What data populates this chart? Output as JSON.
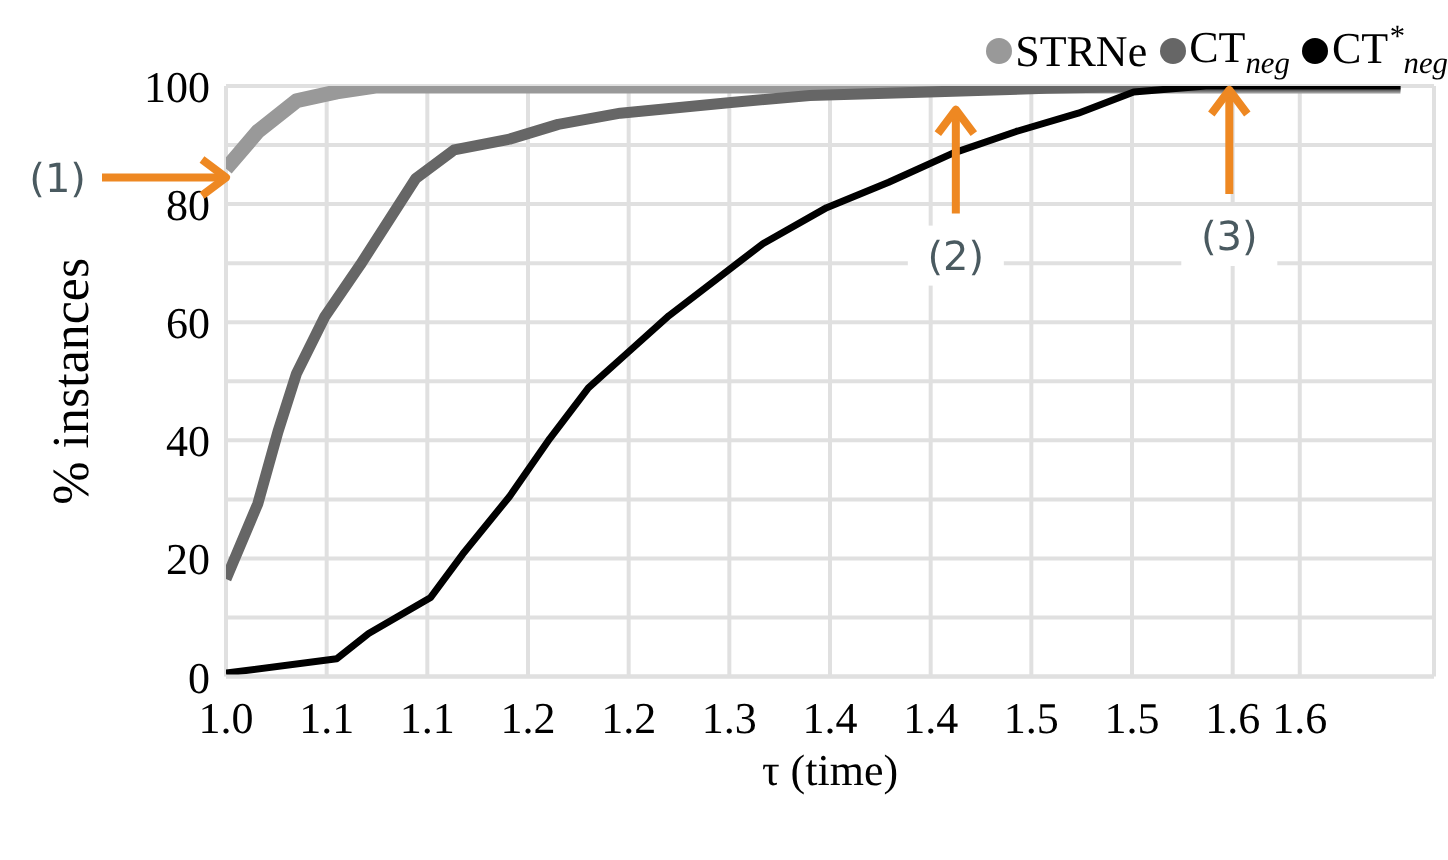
{
  "chart_data": {
    "type": "line",
    "xlabel": "τ (time)",
    "ylabel": "% instances",
    "xlim": [
      1.0,
      1.72
    ],
    "ylim": [
      0,
      100
    ],
    "xticks": [
      {
        "value": 1.0,
        "label": "1.0"
      },
      {
        "value": 1.06,
        "label": "1.1"
      },
      {
        "value": 1.12,
        "label": "1.1"
      },
      {
        "value": 1.18,
        "label": "1.2"
      },
      {
        "value": 1.24,
        "label": "1.2"
      },
      {
        "value": 1.3,
        "label": "1.3"
      },
      {
        "value": 1.36,
        "label": "1.4"
      },
      {
        "value": 1.42,
        "label": "1.4"
      },
      {
        "value": 1.48,
        "label": "1.5"
      },
      {
        "value": 1.54,
        "label": "1.5"
      },
      {
        "value": 1.6,
        "label": "1.6"
      },
      {
        "value": 1.64,
        "label": "1.6"
      }
    ],
    "yticks": [
      0,
      {
        "value": 10,
        "label": null
      },
      20,
      {
        "value": 30,
        "label": null
      },
      40,
      {
        "value": 50,
        "label": null
      },
      60,
      {
        "value": 70,
        "label": null
      },
      80,
      {
        "value": 90,
        "label": null
      },
      100
    ],
    "grid": true,
    "legend": "top right",
    "marker": "none",
    "line_style": "solid",
    "series": [
      {
        "name": "STRNe",
        "color": "#999999",
        "x": [
          1.0,
          1.019,
          1.042,
          1.066,
          1.089,
          1.2,
          1.4,
          1.6,
          1.7
        ],
        "values": [
          86,
          92.3,
          97.5,
          99,
          100,
          100,
          100,
          100,
          100
        ]
      },
      {
        "name": "CT$_{neg}$",
        "color": "#666666",
        "x": [
          1.0,
          1.019,
          1.031,
          1.042,
          1.059,
          1.08,
          1.113,
          1.136,
          1.169,
          1.198,
          1.235,
          1.301,
          1.348,
          1.419,
          1.489,
          1.56,
          1.7
        ],
        "values": [
          16.5,
          29.3,
          41.5,
          51.3,
          61,
          69.7,
          84.3,
          89.2,
          91,
          93.5,
          95.4,
          97.2,
          98.4,
          99,
          99.6,
          100,
          100
        ]
      },
      {
        "name": "CT$^{*}$$_{neg}$",
        "color": "#000000",
        "x": [
          1.0,
          1.066,
          1.085,
          1.122,
          1.141,
          1.169,
          1.193,
          1.216,
          1.24,
          1.264,
          1.292,
          1.32,
          1.358,
          1.395,
          1.433,
          1.471,
          1.508,
          1.541,
          1.584,
          1.7
        ],
        "values": [
          0.6,
          3,
          7.3,
          13.4,
          20.7,
          30.5,
          40.3,
          48.9,
          55,
          61.1,
          67.2,
          73.3,
          79.4,
          83.7,
          88.6,
          92.3,
          95.4,
          99,
          100,
          100
        ]
      }
    ],
    "annotations": [
      {
        "text": "(1)",
        "x": 1.0,
        "y": 86
      },
      {
        "text": "(2)",
        "x": 1.435,
        "y": 97
      },
      {
        "text": "(3)",
        "x": 1.598,
        "y": 100
      }
    ]
  }
}
